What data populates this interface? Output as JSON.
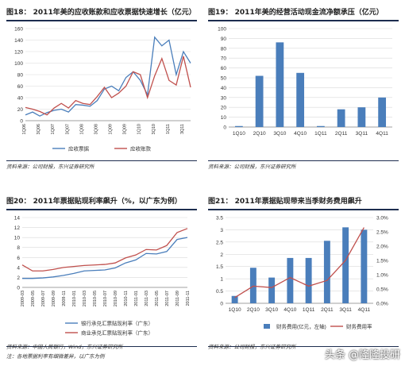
{
  "chart_data": [
    {
      "type": "line",
      "figure_title": "图18： 2011年美的应收账款和应收票据快速增长（亿元）",
      "source": "资料来源：公司财报，东兴证券研究所",
      "categories": [
        "1Q06",
        "2Q06",
        "3Q06",
        "4Q06",
        "1Q07",
        "2Q07",
        "3Q07",
        "4Q07",
        "1Q08",
        "2Q08",
        "3Q08",
        "4Q08",
        "1Q09",
        "2Q09",
        "3Q09",
        "4Q09",
        "1Q10",
        "2Q10",
        "3Q10",
        "4Q10",
        "1Q11",
        "2Q11",
        "3Q11",
        "4Q11"
      ],
      "tick_labels": [
        "1Q06",
        "3Q06",
        "1Q07",
        "3Q07",
        "1Q08",
        "3Q08",
        "1Q09",
        "3Q09",
        "1Q10",
        "3Q10",
        "1Q11",
        "3Q11",
        "1Q12",
        "3Q12"
      ],
      "ylim": [
        0,
        160
      ],
      "yticks": [
        0,
        20,
        40,
        60,
        80,
        100,
        120,
        140,
        160
      ],
      "series": [
        {
          "name": "应收票据",
          "color": "#4a7ebb",
          "values": [
            10,
            15,
            8,
            14,
            18,
            20,
            15,
            28,
            27,
            25,
            35,
            55,
            60,
            52,
            75,
            85,
            70,
            45,
            145,
            130,
            140,
            80,
            120,
            100
          ]
        },
        {
          "name": "应收账款",
          "color": "#c0504d",
          "values": [
            23,
            20,
            16,
            10,
            22,
            30,
            22,
            35,
            30,
            28,
            42,
            58,
            40,
            48,
            60,
            85,
            80,
            40,
            78,
            108,
            70,
            62,
            112,
            58
          ]
        }
      ],
      "grid": true,
      "legend": "bottom"
    },
    {
      "type": "bar",
      "figure_title": "图19： 2011年美的经营活动现金流净额承压（亿元）",
      "source": "资料来源：公司财报，东兴证券研究所",
      "categories": [
        "1Q10",
        "2Q10",
        "3Q10",
        "4Q10",
        "1Q11",
        "2Q11",
        "3Q11",
        "4Q11"
      ],
      "values": [
        1,
        52,
        86,
        55,
        1,
        18,
        20,
        30
      ],
      "ylim": [
        0,
        100
      ],
      "yticks": [
        0,
        10,
        20,
        30,
        40,
        50,
        60,
        70,
        80,
        90,
        100
      ],
      "color": "#4a7ebb",
      "grid": true
    },
    {
      "type": "line",
      "figure_title": "图20： 2011年票据贴现利率飙升（%，以广东为例）",
      "source": "资料来源：中国人民银行，Wind，东兴证券研究所",
      "note": "注：各地票据利率有细微差异，以广东为例",
      "categories": [
        "2009-03",
        "2009-05",
        "2009-07",
        "2009-09",
        "2009-11",
        "2010-01",
        "2010-03",
        "2010-05",
        "2010-07",
        "2010-09",
        "2010-11",
        "2011-01",
        "2011-03",
        "2011-05",
        "2011-07",
        "2011-09",
        "2011-11"
      ],
      "ylim": [
        0,
        14
      ],
      "yticks": [
        0,
        2,
        4,
        6,
        8,
        10,
        12,
        14
      ],
      "series": [
        {
          "name": "银行承兑汇票贴现利率（广东）",
          "color": "#4a7ebb",
          "values": [
            1.8,
            1.8,
            1.9,
            2.1,
            2.4,
            2.8,
            3.3,
            3.4,
            3.5,
            3.9,
            4.9,
            5.5,
            6.8,
            6.7,
            7.2,
            9.6,
            10.0
          ]
        },
        {
          "name": "商业承兑汇票贴现利率（广东）",
          "color": "#c0504d",
          "values": [
            4.5,
            3.3,
            3.3,
            3.6,
            4.0,
            4.2,
            4.4,
            4.5,
            4.6,
            4.9,
            5.9,
            6.5,
            7.6,
            7.5,
            8.4,
            11.0,
            11.8
          ]
        }
      ],
      "grid": true,
      "legend": "bottom"
    },
    {
      "type": "bar",
      "figure_title": "图21： 2011年票据贴现带来当季财务费用飙升",
      "source": "资料来源：公司财报，东兴证券研究所",
      "categories": [
        "1Q10",
        "2Q10",
        "3Q10",
        "4Q10",
        "1Q11",
        "2Q11",
        "3Q11",
        "4Q11"
      ],
      "bar_series": {
        "name": "财务费用(亿元，左轴)",
        "color": "#4a7ebb",
        "values": [
          0.3,
          1.45,
          1.05,
          1.85,
          1.85,
          2.55,
          3.1,
          3.0
        ]
      },
      "line_series": {
        "name": "财务费用率",
        "color": "#c0504d",
        "values": [
          0.2,
          0.6,
          0.55,
          0.9,
          0.6,
          0.8,
          1.5,
          2.65
        ]
      },
      "ylim": [
        0,
        3.5
      ],
      "yticks": [
        0,
        0.5,
        1,
        1.5,
        2,
        2.5,
        3,
        3.5
      ],
      "y2lim": [
        0,
        3.0
      ],
      "y2ticks": [
        "0.0%",
        "0.5%",
        "1.0%",
        "1.5%",
        "2.0%",
        "2.5%",
        "3.0%"
      ],
      "grid": true,
      "legend": "bottom"
    }
  ],
  "watermark": "头条 @隆隆投研"
}
